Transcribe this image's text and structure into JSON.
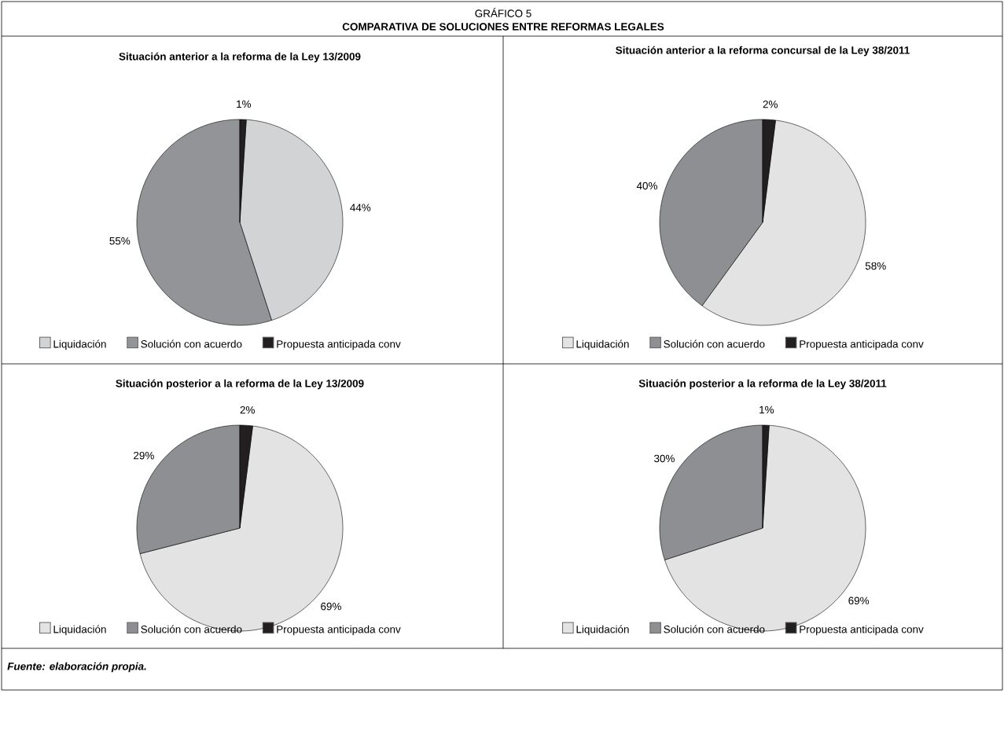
{
  "chart_data": [
    {
      "type": "other",
      "title": "GRÁFICO 5",
      "subtitle": "COMPARATIVA DE SOLUCIONES ENTRE REFORMAS LEGALES",
      "annotations": [
        "Fuente: elaboración propia."
      ]
    },
    {
      "type": "pie",
      "title": "Situación anterior a la reforma de la Ley 13/2009",
      "categories": [
        "Liquidación",
        "Solución con acuerdo",
        "Propuesta anticipada conv"
      ],
      "values": [
        44,
        55,
        1
      ],
      "value_labels": [
        "44%",
        "55%",
        "1%"
      ],
      "colors": [
        "#d2d3d5",
        "#929497",
        "#231f20"
      ],
      "legend": "bottom"
    },
    {
      "type": "pie",
      "title": "Situación anterior a la reforma concursal de la Ley 38/2011",
      "categories": [
        "Liquidación",
        "Solución con acuerdo",
        "Propuesta anticipada conv"
      ],
      "values": [
        58,
        40,
        2
      ],
      "value_labels": [
        "58%",
        "40%",
        "2%"
      ],
      "colors": [
        "#e3e3e4",
        "#8e8f92",
        "#231f20"
      ],
      "legend": "bottom"
    },
    {
      "type": "pie",
      "title": "Situación posterior a la reforma de la Ley 13/2009",
      "categories": [
        "Liquidación",
        "Solución con acuerdo",
        "Propuesta anticipada conv"
      ],
      "values": [
        69,
        29,
        2
      ],
      "value_labels": [
        "69%",
        "29%",
        "2%"
      ],
      "colors": [
        "#e3e3e4",
        "#8e8f92",
        "#231f20"
      ],
      "legend": "bottom"
    },
    {
      "type": "pie",
      "title": "Situación posterior a la reforma de la Ley 38/2011",
      "categories": [
        "Liquidación",
        "Solución con acuerdo",
        "Propuesta anticipada conv"
      ],
      "values": [
        69,
        30,
        1
      ],
      "value_labels": [
        "69%",
        "30%",
        "1%"
      ],
      "colors": [
        "#e3e3e4",
        "#8e8f92",
        "#231f20"
      ],
      "legend": "bottom"
    }
  ]
}
